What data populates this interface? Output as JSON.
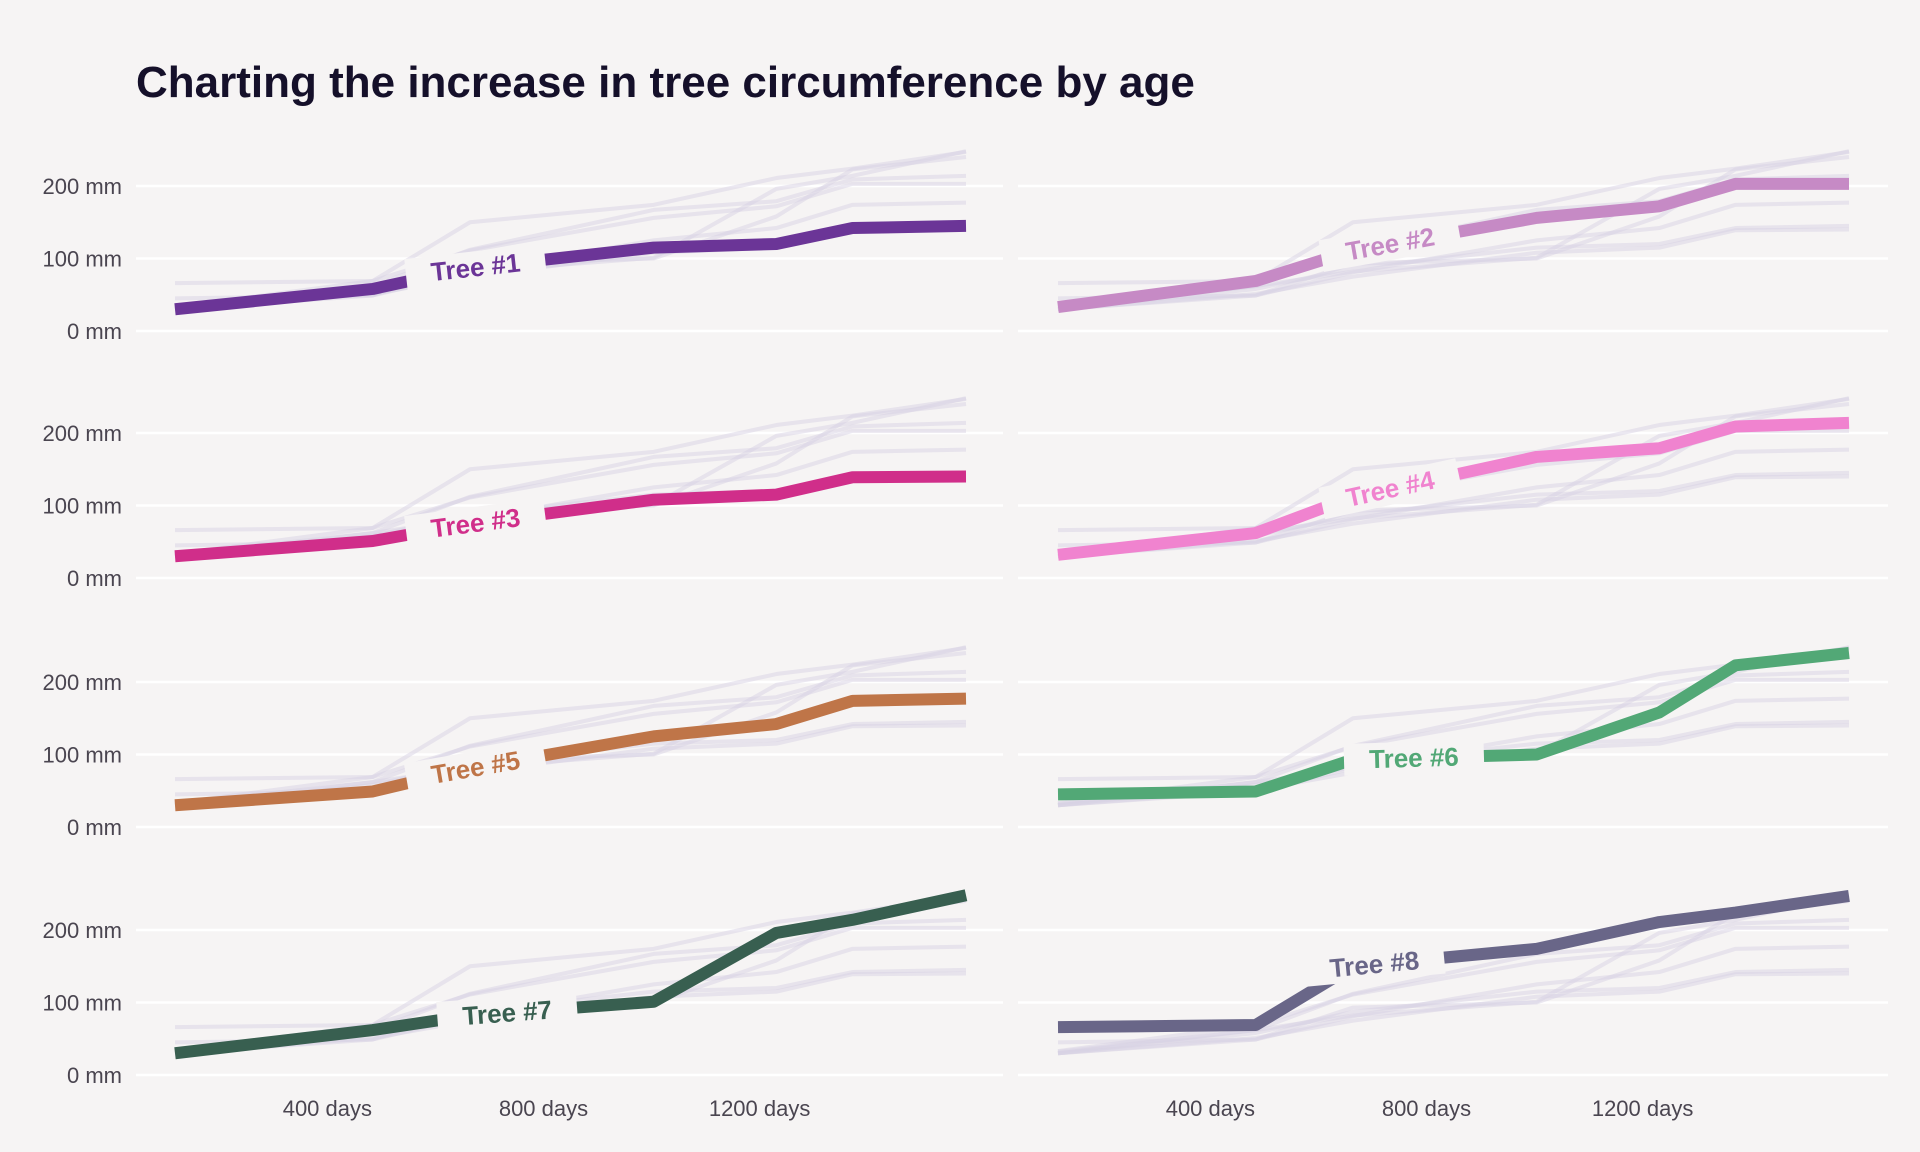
{
  "title": "Charting the increase in tree circumference by age",
  "chart_data": {
    "type": "line",
    "layout": "small-multiples",
    "columns": 2,
    "x": [
      118,
      484,
      664,
      1004,
      1231,
      1372,
      1582
    ],
    "x_ticks": [
      400,
      800,
      1200
    ],
    "x_tick_labels": [
      "400 days",
      "800 days",
      "1200 days"
    ],
    "xlim": [
      118,
      1582
    ],
    "y_ticks": [
      0,
      100,
      200
    ],
    "y_tick_labels": [
      "0 mm",
      "100 mm",
      "200 mm"
    ],
    "ylim": [
      0,
      250
    ],
    "grid": true,
    "series": [
      {
        "name": "Tree #1",
        "color": "#6b3597",
        "values": [
          30,
          58,
          87,
          115,
          120,
          142,
          145
        ]
      },
      {
        "name": "Tree #2",
        "color": "#c68ac5",
        "values": [
          33,
          69,
          111,
          156,
          172,
          203,
          203
        ]
      },
      {
        "name": "Tree #3",
        "color": "#d02e8a",
        "values": [
          30,
          51,
          75,
          108,
          115,
          139,
          140
        ]
      },
      {
        "name": "Tree #4",
        "color": "#f083cf",
        "values": [
          32,
          62,
          112,
          167,
          179,
          209,
          214
        ]
      },
      {
        "name": "Tree #5",
        "color": "#bf7548",
        "values": [
          30,
          49,
          81,
          125,
          142,
          174,
          177
        ]
      },
      {
        "name": "Tree #6",
        "color": "#52a876",
        "values": [
          45,
          49,
          93,
          100,
          158,
          223,
          240
        ]
      },
      {
        "name": "Tree #7",
        "color": "#385f50",
        "values": [
          30,
          62,
          82,
          101,
          196,
          214,
          248
        ]
      },
      {
        "name": "Tree #8",
        "color": "#696688",
        "values": [
          66,
          69,
          150,
          174,
          211,
          224,
          247
        ]
      }
    ]
  }
}
